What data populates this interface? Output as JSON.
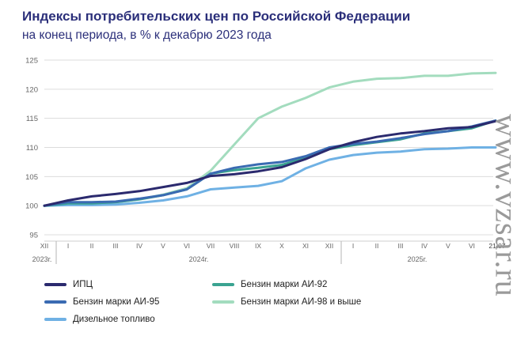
{
  "title": "Индексы потребительских цен по Российской Федерации",
  "subtitle": "на конец периода, в % к декабрю 2023 года",
  "watermark": "www.vzsar.ru",
  "chart_data": {
    "type": "line",
    "ylim": [
      95,
      125
    ],
    "yticks": [
      95,
      100,
      105,
      110,
      115,
      120,
      125
    ],
    "grid": true,
    "legend_placement": "bottom",
    "x_labels": [
      "XII",
      "I",
      "II",
      "III",
      "IV",
      "V",
      "VI",
      "VII",
      "VIII",
      "IX",
      "X",
      "XI",
      "XII",
      "I",
      "II",
      "III",
      "IV",
      "V",
      "VI"
    ],
    "end_label": "21.07",
    "year_labels": [
      "2023г.",
      "2024г.",
      "2025г."
    ],
    "series": [
      {
        "name": "ИПЦ",
        "color": "#2b2a6e",
        "values": [
          100,
          100.9,
          101.6,
          102.0,
          102.5,
          103.2,
          103.9,
          105.1,
          105.4,
          105.9,
          106.6,
          108.0,
          109.7,
          110.9,
          111.8,
          112.4,
          112.8,
          113.3,
          113.5,
          114.5
        ]
      },
      {
        "name": "Бензин марки АИ-92",
        "color": "#3aa391",
        "values": [
          100,
          100.4,
          100.4,
          100.6,
          101.1,
          101.8,
          102.8,
          105.5,
          106.1,
          106.5,
          107.0,
          108.2,
          109.7,
          110.4,
          110.9,
          111.4,
          112.4,
          112.8,
          113.3,
          114.6
        ]
      },
      {
        "name": "Бензин марки АИ-95",
        "color": "#3a6bb2",
        "values": [
          100,
          100.6,
          100.6,
          100.7,
          101.2,
          101.8,
          102.8,
          105.5,
          106.5,
          107.1,
          107.5,
          108.5,
          110.0,
          110.6,
          111.0,
          111.6,
          112.3,
          112.8,
          113.6,
          114.6
        ]
      },
      {
        "name": "Бензин марки АИ-98 и выше",
        "color": "#a3dcbe",
        "values": [
          100,
          100.3,
          100.4,
          100.6,
          101.1,
          101.9,
          103.0,
          106.0,
          110.5,
          115.0,
          117.0,
          118.5,
          120.3,
          121.3,
          121.8,
          121.9,
          122.3,
          122.3,
          122.7,
          122.8
        ]
      },
      {
        "name": "Дизельное топливо",
        "color": "#6fb1e4",
        "values": [
          100,
          100.1,
          100.1,
          100.2,
          100.5,
          100.9,
          101.6,
          102.8,
          103.1,
          103.4,
          104.2,
          106.4,
          107.9,
          108.7,
          109.1,
          109.3,
          109.7,
          109.8,
          110.0,
          110.0
        ]
      }
    ]
  }
}
